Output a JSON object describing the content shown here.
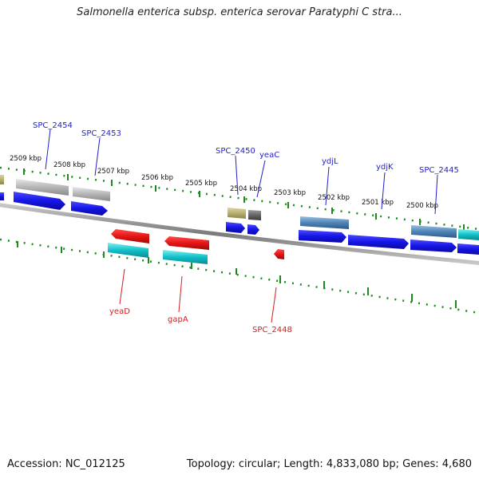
{
  "header": {
    "title": "Salmonella enterica subsp. enterica serovar Paratyphi C stra..."
  },
  "footer": {
    "accession": "Accession: NC_012125",
    "summary": "Topology: circular; Length: 4,833,080 bp; Genes: 4,680"
  },
  "colors": {
    "backbone": "#7a7a7a",
    "tick": "#1c8a1c",
    "cds_forward": "#1515e6",
    "cds_reverse": "#e61515",
    "gene_gray": "#b5b5b5",
    "gene_cyan": "#10c0c8",
    "gene_olive": "#b8b070",
    "gene_darkgray": "#666666",
    "gene_steelblue": "#4f84b8",
    "label_forward": "#1f1fcf",
    "label_reverse": "#d21f1f"
  },
  "kbp_ticks": [
    "2509 kbp",
    "2508 kbp",
    "2507 kbp",
    "2506 kbp",
    "2505 kbp",
    "2504 kbp",
    "2503 kbp",
    "2502 kbp",
    "2501 kbp",
    "2500 kbp"
  ],
  "forward_labels": [
    "SPC_2454",
    "SPC_2453",
    "SPC_2450",
    "yeaC",
    "ydjL",
    "ydjK",
    "SPC_2445"
  ],
  "reverse_labels": [
    "yeaD",
    "gapA",
    "SPC_2448"
  ]
}
